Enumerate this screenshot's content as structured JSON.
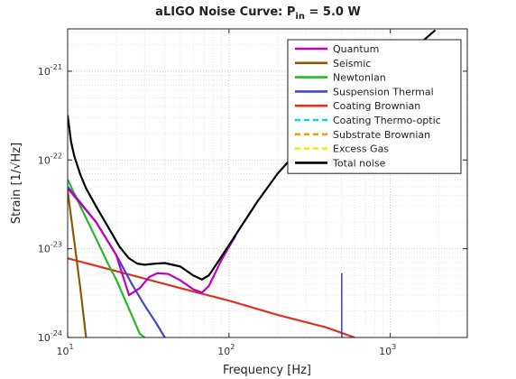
{
  "chart_data": {
    "type": "line",
    "title": "aLIGO Noise Curve: P",
    "title_sub": "in",
    "title_tail": " = 5.0 W",
    "xlabel": "Frequency [Hz]",
    "ylabel": "Strain [1/√Hz]",
    "x_scale": "log",
    "y_scale": "log",
    "xlim": [
      10,
      3000
    ],
    "ylim": [
      1e-24,
      3e-21
    ],
    "grid": true,
    "legend_position": "top-right",
    "x_ticks": [
      {
        "value": 10,
        "base": "10",
        "exp": "1"
      },
      {
        "value": 100,
        "base": "10",
        "exp": "2"
      },
      {
        "value": 1000,
        "base": "10",
        "exp": "3"
      }
    ],
    "y_ticks": [
      {
        "value": 1e-24,
        "base": "10",
        "exp": "-24"
      },
      {
        "value": 1e-23,
        "base": "10",
        "exp": "-23"
      },
      {
        "value": 1e-22,
        "base": "10",
        "exp": "-22"
      },
      {
        "value": 1e-21,
        "base": "10",
        "exp": "-21"
      }
    ],
    "series": [
      {
        "name": "Quantum",
        "color": "#c000c0",
        "dash": "solid",
        "points": [
          [
            10,
            4.8e-23
          ],
          [
            15,
            2e-23
          ],
          [
            20,
            8.5e-24
          ],
          [
            24,
            3e-24
          ],
          [
            28,
            3.6e-24
          ],
          [
            32,
            4.8e-24
          ],
          [
            36,
            5.3e-24
          ],
          [
            42,
            5.2e-24
          ],
          [
            50,
            4.4e-24
          ],
          [
            60,
            3.5e-24
          ],
          [
            68,
            3.2e-24
          ],
          [
            75,
            3.8e-24
          ],
          [
            90,
            7.5e-24
          ],
          [
            100,
            1.05e-23
          ],
          [
            110,
            1.4e-23
          ]
        ]
      },
      {
        "name": "Seismic",
        "color": "#8b5a00",
        "dash": "solid",
        "points": [
          [
            10,
            4.5e-23
          ],
          [
            11,
            1.2e-23
          ],
          [
            12,
            3.5e-24
          ],
          [
            13,
            1e-24
          ]
        ]
      },
      {
        "name": "Newtonian",
        "color": "#22bb22",
        "dash": "solid",
        "points": [
          [
            10,
            6e-23
          ],
          [
            12,
            3e-23
          ],
          [
            15,
            1.3e-23
          ],
          [
            18,
            6.5e-24
          ],
          [
            20,
            4.5e-24
          ],
          [
            24,
            2.1e-24
          ],
          [
            28,
            1.1e-24
          ],
          [
            30,
            1e-24
          ]
        ]
      },
      {
        "name": "Suspension Thermal",
        "color": "#4444cc",
        "dash": "solid",
        "points": [
          [
            10,
            5e-23
          ],
          [
            15,
            2e-23
          ],
          [
            20,
            8.5e-24
          ],
          [
            25,
            4e-24
          ],
          [
            30,
            2.3e-24
          ],
          [
            35,
            1.5e-24
          ],
          [
            40,
            1e-24
          ]
        ]
      },
      {
        "name": "Coating Brownian",
        "color": "#e03020",
        "dash": "solid",
        "points": [
          [
            10,
            7.8e-24
          ],
          [
            20,
            5.6e-24
          ],
          [
            50,
            3.6e-24
          ],
          [
            100,
            2.6e-24
          ],
          [
            200,
            1.8e-24
          ],
          [
            400,
            1.3e-24
          ],
          [
            600,
            1e-24
          ]
        ]
      },
      {
        "name": "Coating Thermo-optic",
        "color": "#00d8d8",
        "dash": "dashed",
        "points": [
          [
            10,
            1e-24
          ],
          [
            10.3,
            1e-24
          ]
        ]
      },
      {
        "name": "Substrate Brownian",
        "color": "#ff9900",
        "dash": "dashed",
        "points": []
      },
      {
        "name": "Excess Gas",
        "color": "#eeee00",
        "dash": "dashed",
        "points": []
      },
      {
        "name": "Total noise",
        "color": "#000000",
        "dash": "solid",
        "points": [
          [
            10,
            3.2e-22
          ],
          [
            10.5,
            1.6e-22
          ],
          [
            11,
            1.1e-22
          ],
          [
            12,
            6.8e-23
          ],
          [
            13,
            4.8e-23
          ],
          [
            15,
            3e-23
          ],
          [
            18,
            1.7e-23
          ],
          [
            21,
            1.05e-23
          ],
          [
            24,
            7.8e-24
          ],
          [
            27,
            6.8e-24
          ],
          [
            30,
            6.6e-24
          ],
          [
            35,
            6.8e-24
          ],
          [
            40,
            6.9e-24
          ],
          [
            50,
            6.3e-24
          ],
          [
            60,
            5e-24
          ],
          [
            68,
            4.5e-24
          ],
          [
            75,
            5e-24
          ],
          [
            85,
            7e-24
          ],
          [
            100,
            1.1e-23
          ],
          [
            150,
            3.4e-23
          ],
          [
            200,
            7e-23
          ],
          [
            300,
            1.6e-22
          ],
          [
            500,
            4.3e-22
          ],
          [
            700,
            7e-22
          ],
          [
            1000,
            1.15e-21
          ],
          [
            1500,
            2e-21
          ],
          [
            1900,
            2.9e-21
          ]
        ]
      }
    ],
    "annotations": [
      {
        "series": "Suspension Thermal",
        "note": "spike",
        "x": 500,
        "y_top": 5.3e-24,
        "y_bottom": 1e-24
      }
    ]
  }
}
